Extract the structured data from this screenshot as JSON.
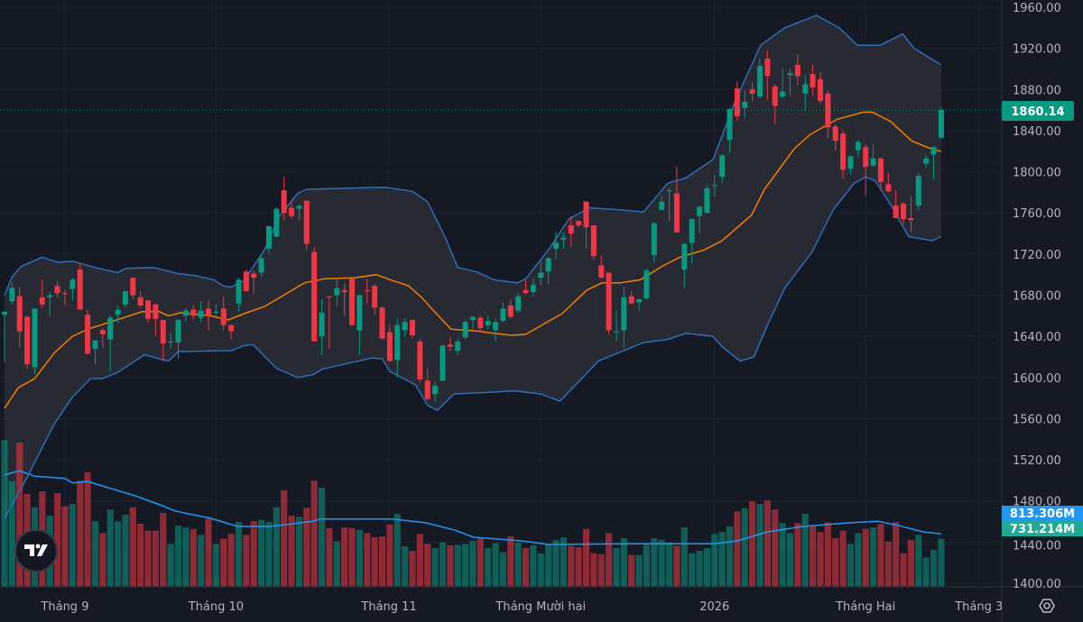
{
  "chart_data": {
    "type": "candlestick",
    "title": "",
    "colors": {
      "background": "#151924",
      "up": "#089981",
      "down": "#f23645",
      "bb_upper_lower": "#2f6db5",
      "bb_basis": "#f57c00",
      "bb_fill": "#2a2e35",
      "volume_ma": "#2196f3",
      "grid": "#1f2330"
    },
    "y_axis": {
      "ticks": [
        "1960.00",
        "1920.00",
        "1880.00",
        "1840.00",
        "1800.00",
        "1760.00",
        "1720.00",
        "1680.00",
        "1640.00",
        "1600.00",
        "1560.00",
        "1520.00",
        "1480.00",
        "1440.00",
        "1400.00"
      ],
      "ylim": [
        1400,
        1960
      ]
    },
    "x_axis": {
      "ticks": [
        "Tháng 9",
        "Tháng 10",
        "Tháng 11",
        "Tháng Mười hai",
        "2026",
        "Tháng Hai",
        "Tháng 3"
      ]
    },
    "last_price": "1860.14",
    "volume_ma_label": "813.306M",
    "volume_label": "731.214M",
    "candles_ohlc": [
      [
        1661,
        1665,
        1615,
        1664
      ],
      [
        1674,
        1693,
        1671,
        1687
      ],
      [
        1679,
        1688,
        1629,
        1645
      ],
      [
        1659,
        1660,
        1608,
        1613
      ],
      [
        1610,
        1667,
        1603,
        1667
      ],
      [
        1678,
        1695,
        1668,
        1671
      ],
      [
        1678,
        1683,
        1659,
        1680
      ],
      [
        1689,
        1694,
        1678,
        1682
      ],
      [
        1682,
        1685,
        1670,
        1681
      ],
      [
        1686,
        1697,
        1675,
        1695
      ],
      [
        1705,
        1711,
        1666,
        1666
      ],
      [
        1661,
        1666,
        1623,
        1623
      ],
      [
        1628,
        1636,
        1613,
        1636
      ],
      [
        1646,
        1648,
        1629,
        1642
      ],
      [
        1637,
        1660,
        1606,
        1658
      ],
      [
        1661,
        1670,
        1653,
        1666
      ],
      [
        1671,
        1684,
        1668,
        1684
      ],
      [
        1697,
        1697,
        1676,
        1680
      ],
      [
        1678,
        1684,
        1668,
        1670
      ],
      [
        1675,
        1675,
        1653,
        1657
      ],
      [
        1671,
        1672,
        1640,
        1657
      ],
      [
        1656,
        1656,
        1616,
        1633
      ],
      [
        1634,
        1643,
        1628,
        1635
      ],
      [
        1634,
        1656,
        1618,
        1656
      ],
      [
        1660,
        1667,
        1654,
        1665
      ],
      [
        1666,
        1670,
        1657,
        1660
      ],
      [
        1658,
        1674,
        1654,
        1665
      ],
      [
        1667,
        1675,
        1646,
        1660
      ],
      [
        1663,
        1671,
        1660,
        1664
      ],
      [
        1667,
        1679,
        1646,
        1651
      ],
      [
        1651,
        1651,
        1637,
        1645
      ],
      [
        1672,
        1697,
        1664,
        1695
      ],
      [
        1703,
        1705,
        1683,
        1684
      ],
      [
        1701,
        1704,
        1681,
        1697
      ],
      [
        1702,
        1718,
        1698,
        1716
      ],
      [
        1725,
        1748,
        1721,
        1747
      ],
      [
        1737,
        1765,
        1736,
        1764
      ],
      [
        1782,
        1795,
        1753,
        1760
      ],
      [
        1765,
        1773,
        1754,
        1757
      ],
      [
        1764,
        1768,
        1753,
        1767
      ],
      [
        1772,
        1772,
        1724,
        1730
      ],
      [
        1722,
        1727,
        1635,
        1635
      ],
      [
        1640,
        1676,
        1622,
        1663
      ],
      [
        1679,
        1679,
        1628,
        1678
      ],
      [
        1680,
        1697,
        1669,
        1687
      ],
      [
        1685,
        1691,
        1660,
        1683
      ],
      [
        1696,
        1697,
        1650,
        1651
      ],
      [
        1646,
        1681,
        1622,
        1680
      ],
      [
        1685,
        1696,
        1672,
        1684
      ],
      [
        1689,
        1691,
        1661,
        1668
      ],
      [
        1668,
        1669,
        1637,
        1638
      ],
      [
        1644,
        1652,
        1616,
        1616
      ],
      [
        1617,
        1658,
        1600,
        1651
      ],
      [
        1646,
        1658,
        1640,
        1654
      ],
      [
        1656,
        1656,
        1638,
        1641
      ],
      [
        1635,
        1638,
        1595,
        1598
      ],
      [
        1597,
        1609,
        1578,
        1579
      ],
      [
        1584,
        1596,
        1576,
        1592
      ],
      [
        1597,
        1632,
        1597,
        1631
      ],
      [
        1632,
        1639,
        1626,
        1630
      ],
      [
        1626,
        1638,
        1622,
        1635
      ],
      [
        1639,
        1656,
        1637,
        1654
      ],
      [
        1656,
        1660,
        1647,
        1659
      ],
      [
        1658,
        1660,
        1644,
        1648
      ],
      [
        1651,
        1660,
        1647,
        1655
      ],
      [
        1646,
        1657,
        1635,
        1654
      ],
      [
        1655,
        1673,
        1654,
        1667
      ],
      [
        1670,
        1676,
        1657,
        1659
      ],
      [
        1665,
        1682,
        1663,
        1679
      ],
      [
        1685,
        1695,
        1681,
        1682
      ],
      [
        1683,
        1696,
        1679,
        1690
      ],
      [
        1697,
        1713,
        1690,
        1702
      ],
      [
        1703,
        1717,
        1690,
        1716
      ],
      [
        1725,
        1742,
        1715,
        1731
      ],
      [
        1734,
        1741,
        1725,
        1736
      ],
      [
        1748,
        1757,
        1728,
        1740
      ],
      [
        1752,
        1753,
        1746,
        1748
      ],
      [
        1771,
        1771,
        1725,
        1746
      ],
      [
        1748,
        1748,
        1714,
        1718
      ],
      [
        1709,
        1719,
        1696,
        1697
      ],
      [
        1702,
        1702,
        1642,
        1646
      ],
      [
        1645,
        1665,
        1635,
        1645
      ],
      [
        1646,
        1688,
        1629,
        1678
      ],
      [
        1679,
        1684,
        1671,
        1672
      ],
      [
        1673,
        1677,
        1665,
        1676
      ],
      [
        1677,
        1706,
        1676,
        1704
      ],
      [
        1719,
        1751,
        1712,
        1750
      ],
      [
        1763,
        1777,
        1763,
        1771
      ],
      [
        1781,
        1784,
        1752,
        1782
      ],
      [
        1779,
        1805,
        1741,
        1741
      ],
      [
        1705,
        1731,
        1687,
        1730
      ],
      [
        1731,
        1755,
        1711,
        1754
      ],
      [
        1757,
        1767,
        1740,
        1766
      ],
      [
        1760,
        1787,
        1760,
        1784
      ],
      [
        1786,
        1797,
        1775,
        1787
      ],
      [
        1795,
        1817,
        1789,
        1816
      ],
      [
        1831,
        1862,
        1819,
        1861
      ],
      [
        1881,
        1888,
        1850,
        1854
      ],
      [
        1862,
        1879,
        1852,
        1868
      ],
      [
        1880,
        1887,
        1869,
        1876
      ],
      [
        1873,
        1910,
        1872,
        1903
      ],
      [
        1910,
        1918,
        1870,
        1893
      ],
      [
        1883,
        1885,
        1846,
        1864
      ],
      [
        1873,
        1900,
        1872,
        1878
      ],
      [
        1894,
        1900,
        1874,
        1896
      ],
      [
        1904,
        1914,
        1884,
        1893
      ],
      [
        1876,
        1894,
        1859,
        1885
      ],
      [
        1895,
        1904,
        1874,
        1882
      ],
      [
        1890,
        1897,
        1866,
        1869
      ],
      [
        1876,
        1879,
        1833,
        1843
      ],
      [
        1844,
        1846,
        1821,
        1830
      ],
      [
        1837,
        1841,
        1793,
        1802
      ],
      [
        1803,
        1816,
        1797,
        1815
      ],
      [
        1821,
        1831,
        1813,
        1829
      ],
      [
        1824,
        1827,
        1777,
        1805
      ],
      [
        1806,
        1827,
        1805,
        1813
      ],
      [
        1813,
        1814,
        1781,
        1790
      ],
      [
        1788,
        1799,
        1780,
        1781
      ],
      [
        1767,
        1782,
        1755,
        1755
      ],
      [
        1769,
        1771,
        1749,
        1754
      ],
      [
        1755,
        1776,
        1741,
        1753
      ],
      [
        1767,
        1799,
        1763,
        1796
      ],
      [
        1808,
        1816,
        1804,
        1813
      ],
      [
        1817,
        1825,
        1793,
        1824
      ],
      [
        1833,
        1863,
        1832,
        1860.14
      ]
    ],
    "volume_millions": [
      2354,
      1676,
      2313,
      1468,
      1250,
      1513,
      1112,
      1483,
      1265,
      1305,
      1686,
      1824,
      1019,
      826,
      1212,
      1019,
      1127,
      1250,
      979,
      865,
      865,
      1157,
      648,
      949,
      919,
      890,
      796,
      1057,
      648,
      731,
      811,
      1008,
      796,
      1019,
      1043,
      1008,
      1250,
      1527,
      1112,
      1093,
      1241,
      1686,
      1572,
      905,
      687,
      919,
      905,
      879,
      826,
      756,
      771,
      964,
      1142,
      608,
      534,
      811,
      648,
      578,
      672,
      623,
      633,
      648,
      697,
      731,
      578,
      657,
      509,
      771,
      672,
      578,
      623,
      494,
      633,
      712,
      756,
      618,
      593,
      894,
      494,
      479,
      826,
      578,
      742,
      464,
      464,
      633,
      742,
      712,
      672,
      618,
      919,
      494,
      534,
      578,
      811,
      841,
      934,
      1182,
      1235,
      1345,
      1305,
      1360,
      1212,
      989,
      826,
      989,
      1142,
      949,
      841,
      1004,
      742,
      865,
      648,
      826,
      894,
      919,
      974,
      687,
      1004,
      494,
      712,
      796,
      425,
      549,
      731.214
    ],
    "bollinger_upper": [
      [
        0,
        1680
      ],
      [
        1,
        1698
      ],
      [
        2.2,
        1708
      ],
      [
        5,
        1717
      ],
      [
        7,
        1712
      ],
      [
        9,
        1713
      ],
      [
        12.5,
        1706
      ],
      [
        15,
        1702
      ],
      [
        16,
        1706
      ],
      [
        19.7,
        1707
      ],
      [
        23,
        1701
      ],
      [
        25.3,
        1699
      ],
      [
        27.7,
        1695
      ],
      [
        29,
        1689
      ],
      [
        30,
        1688
      ],
      [
        31.7,
        1694
      ],
      [
        34.4,
        1724
      ],
      [
        36.4,
        1757
      ],
      [
        38.8,
        1779
      ],
      [
        40,
        1783
      ],
      [
        50.4,
        1785
      ],
      [
        54,
        1781
      ],
      [
        56,
        1771
      ],
      [
        58.3,
        1737
      ],
      [
        60,
        1707
      ],
      [
        62.4,
        1703
      ],
      [
        64.8,
        1695
      ],
      [
        67.9,
        1692
      ],
      [
        69,
        1696
      ],
      [
        72,
        1724
      ],
      [
        74.7,
        1754
      ],
      [
        77.4,
        1765
      ],
      [
        81.5,
        1763
      ],
      [
        84.6,
        1761
      ],
      [
        87.8,
        1789
      ],
      [
        90.2,
        1794
      ],
      [
        93.8,
        1812
      ],
      [
        96.8,
        1870
      ],
      [
        100.1,
        1923
      ],
      [
        103.3,
        1940
      ],
      [
        107.5,
        1952
      ],
      [
        110.5,
        1940
      ],
      [
        112.9,
        1923
      ],
      [
        115.9,
        1923
      ],
      [
        118.9,
        1934
      ],
      [
        120.4,
        1920
      ],
      [
        124,
        1904
      ]
    ],
    "bollinger_basis": [
      [
        0,
        1570
      ],
      [
        1.8,
        1590
      ],
      [
        4,
        1599
      ],
      [
        6.6,
        1624
      ],
      [
        9,
        1640
      ],
      [
        11,
        1647
      ],
      [
        15.3,
        1657
      ],
      [
        18.2,
        1664
      ],
      [
        20.5,
        1664
      ],
      [
        21.7,
        1660
      ],
      [
        23.3,
        1663
      ],
      [
        27.2,
        1660
      ],
      [
        29.6,
        1656
      ],
      [
        31.7,
        1662
      ],
      [
        34.4,
        1669
      ],
      [
        39.7,
        1692
      ],
      [
        42.4,
        1696
      ],
      [
        46.4,
        1697
      ],
      [
        49.2,
        1700
      ],
      [
        51.1,
        1695
      ],
      [
        53.5,
        1689
      ],
      [
        55.2,
        1678
      ],
      [
        56.8,
        1665
      ],
      [
        59.1,
        1647
      ],
      [
        62.7,
        1645
      ],
      [
        64.8,
        1643
      ],
      [
        67.1,
        1641
      ],
      [
        69,
        1642
      ],
      [
        71.4,
        1652
      ],
      [
        73.8,
        1662
      ],
      [
        77.1,
        1685
      ],
      [
        79.1,
        1692
      ],
      [
        81.5,
        1692
      ],
      [
        84.2,
        1695
      ],
      [
        87,
        1708
      ],
      [
        89.4,
        1717
      ],
      [
        92.6,
        1724
      ],
      [
        95,
        1733
      ],
      [
        98.9,
        1758
      ],
      [
        100.6,
        1783
      ],
      [
        104.5,
        1822
      ],
      [
        106.6,
        1836
      ],
      [
        110.2,
        1851
      ],
      [
        113.7,
        1858
      ],
      [
        114.9,
        1858
      ],
      [
        117.3,
        1849
      ],
      [
        120.1,
        1830
      ],
      [
        122.8,
        1822
      ],
      [
        124,
        1820
      ]
    ],
    "bollinger_lower": [
      [
        0,
        1463
      ],
      [
        3,
        1503
      ],
      [
        6.6,
        1555
      ],
      [
        9,
        1581
      ],
      [
        11.4,
        1599
      ],
      [
        13,
        1599
      ],
      [
        15,
        1605
      ],
      [
        18.5,
        1622
      ],
      [
        21.7,
        1616
      ],
      [
        23,
        1625
      ],
      [
        28,
        1626
      ],
      [
        30,
        1626
      ],
      [
        31.7,
        1631
      ],
      [
        32.9,
        1632
      ],
      [
        36,
        1609
      ],
      [
        38.8,
        1600
      ],
      [
        40.9,
        1603
      ],
      [
        42,
        1608
      ],
      [
        45.6,
        1614
      ],
      [
        48.7,
        1619
      ],
      [
        50,
        1618
      ],
      [
        51,
        1606
      ],
      [
        54.4,
        1593
      ],
      [
        56,
        1573
      ],
      [
        57.3,
        1568
      ],
      [
        59.5,
        1584
      ],
      [
        62.7,
        1585
      ],
      [
        67.5,
        1587
      ],
      [
        71,
        1584
      ],
      [
        73.5,
        1577
      ],
      [
        75.9,
        1595
      ],
      [
        78.6,
        1616
      ],
      [
        80.6,
        1622
      ],
      [
        84.6,
        1634
      ],
      [
        87.8,
        1637
      ],
      [
        90.2,
        1643
      ],
      [
        93.8,
        1640
      ],
      [
        95,
        1630
      ],
      [
        97.4,
        1616
      ],
      [
        99.2,
        1620
      ],
      [
        101,
        1651
      ],
      [
        103.3,
        1687
      ],
      [
        106.9,
        1722
      ],
      [
        109.7,
        1763
      ],
      [
        112.5,
        1789
      ],
      [
        114,
        1795
      ],
      [
        115.3,
        1791
      ],
      [
        117.3,
        1768
      ],
      [
        119.7,
        1737
      ],
      [
        122.8,
        1733
      ],
      [
        124,
        1737
      ]
    ],
    "volume_ma_millions": [
      [
        0,
        1784
      ],
      [
        2,
        1849
      ],
      [
        4,
        1760
      ],
      [
        8,
        1725
      ],
      [
        9,
        1651
      ],
      [
        11,
        1676
      ],
      [
        13.3,
        1587
      ],
      [
        17.3,
        1438
      ],
      [
        20.9,
        1275
      ],
      [
        22.5,
        1191
      ],
      [
        27.3,
        1068
      ],
      [
        30.9,
        934
      ],
      [
        35.2,
        934
      ],
      [
        40.8,
        1019
      ],
      [
        41.8,
        1057
      ],
      [
        51.4,
        1057
      ],
      [
        55.8,
        994
      ],
      [
        59.7,
        870
      ],
      [
        62.1,
        756
      ],
      [
        68.5,
        697
      ],
      [
        72,
        638
      ],
      [
        82.4,
        648
      ],
      [
        85.8,
        648
      ],
      [
        93.8,
        648
      ],
      [
        97,
        697
      ],
      [
        101,
        845
      ],
      [
        105.7,
        934
      ],
      [
        111.7,
        994
      ],
      [
        115.7,
        1019
      ],
      [
        118.5,
        945
      ],
      [
        121.6,
        845
      ],
      [
        124,
        813.306
      ]
    ]
  },
  "ui": {
    "logo_text": "TV",
    "settings_icon": "settings-icon"
  }
}
